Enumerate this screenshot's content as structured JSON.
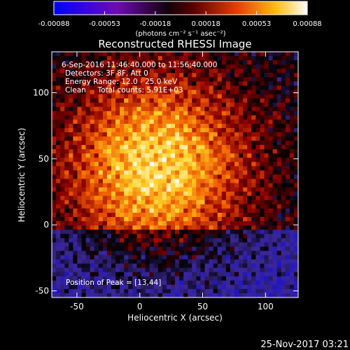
{
  "colorbar": {
    "ticks": [
      "-0.00088",
      "-0.00053",
      "-0.00018",
      "0.00018",
      "0.00053",
      "0.00088"
    ],
    "range": [
      -0.00088,
      0.00088
    ],
    "units_label": "(photons cm⁻² s⁻¹ asec⁻²)"
  },
  "chart_data": {
    "type": "heatmap",
    "title": "Reconstructed RHESSI Image",
    "xlabel": "Heliocentric X (arcsec)",
    "ylabel": "Heliocentric Y (arcsec)",
    "xlim": [
      -70,
      126
    ],
    "ylim": [
      -55,
      131
    ],
    "xticks": [
      -50,
      0,
      50,
      100
    ],
    "yticks": [
      -50,
      0,
      50,
      100
    ],
    "colormap": [
      "#1e14c8",
      "#3c2896",
      "#000000",
      "#8c0000",
      "#f05a00",
      "#ffd228",
      "#ffffff"
    ],
    "peak": [
      13,
      44
    ],
    "annotations": [
      "6-Sep-2016 11:46:40.000 to 11:56:40.000",
      "Detectors: 3F 8F, Att 0",
      "Energy Range: 12.0 - 25.0 keV",
      "Clean     Total counts: 5.91E+03"
    ],
    "peak_label": "Position of Peak = [13,44]"
  },
  "footer": {
    "timestamp": "25-Nov-2017 03:21"
  }
}
